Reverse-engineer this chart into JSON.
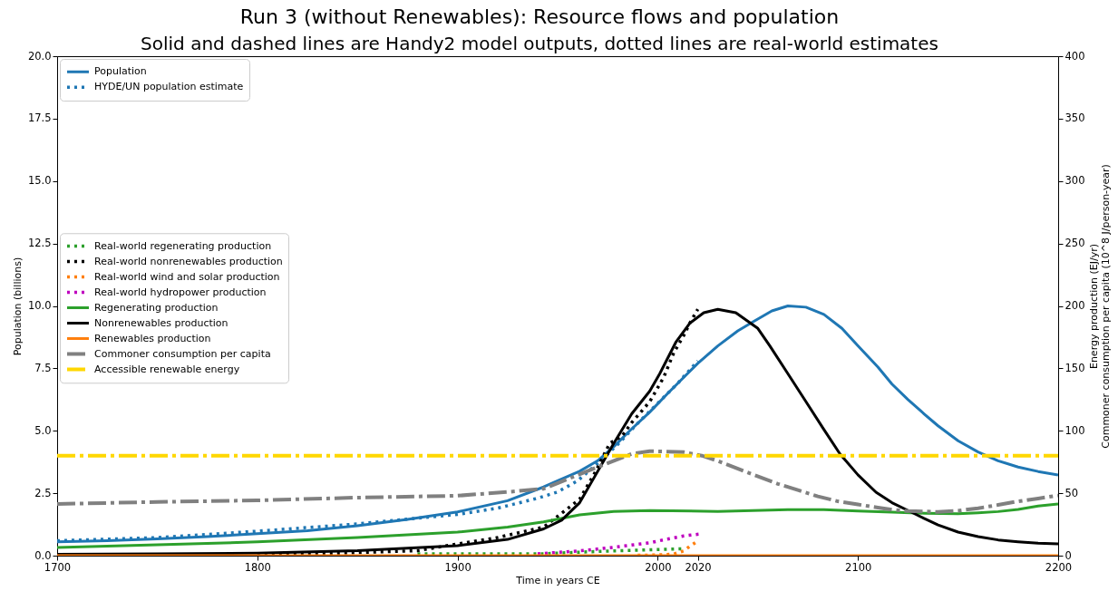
{
  "chart_data": {
    "type": "line",
    "title": "Run 3 (without Renewables): Resource flows and population",
    "subtitle": "Solid and dashed lines are Handy2 model outputs, dotted lines are real-world estimates",
    "xlabel": "Time in years CE",
    "ylabel": "Population (billions)",
    "y2label": "Energy production (EJ/yr)\nCommoner consumption per capita (10^8 J/person-year)",
    "xlim": [
      1700,
      2200
    ],
    "xticks": [
      1700,
      1800,
      1900,
      2000,
      2020,
      2100,
      2200
    ],
    "ylim": [
      0,
      20
    ],
    "yticks": [
      {
        "value": 0,
        "label": "0.0"
      },
      2.5,
      {
        "value": 5,
        "label": "5.0"
      },
      7.5,
      {
        "value": 10,
        "label": "10.0"
      },
      12.5,
      {
        "value": 15,
        "label": "15.0"
      },
      17.5,
      {
        "value": 20,
        "label": "20.0"
      }
    ],
    "y2lim": [
      0,
      400
    ],
    "y2ticks": [
      0,
      50,
      100,
      150,
      200,
      250,
      300,
      350,
      400
    ],
    "legend": "top left",
    "series": [
      {
        "name": "Population",
        "color": "#1f77b4",
        "line_style": "solid",
        "x": [
          1700,
          1725,
          1750,
          1775,
          1800,
          1825,
          1850,
          1875,
          1900,
          1925,
          1943,
          1950,
          1961,
          1970,
          1978,
          1986,
          1996,
          2005,
          2013,
          2020,
          2030,
          2040,
          2048,
          2057,
          2065,
          2074,
          2083,
          2092,
          2100,
          2110,
          2117,
          2125,
          2133,
          2140,
          2150,
          2160,
          2170,
          2180,
          2190,
          2200
        ],
        "values": [
          0.55,
          0.6,
          0.67,
          0.76,
          0.88,
          1.0,
          1.2,
          1.45,
          1.75,
          2.2,
          2.75,
          3.0,
          3.38,
          3.8,
          4.36,
          5.0,
          5.75,
          6.5,
          7.14,
          7.7,
          8.4,
          9.0,
          9.38,
          9.8,
          10.0,
          9.95,
          9.66,
          9.1,
          8.4,
          7.55,
          6.87,
          6.25,
          5.68,
          5.2,
          4.6,
          4.15,
          3.8,
          3.55,
          3.37,
          3.23
        ]
      },
      {
        "name": "HYDE/UN population estimate",
        "color": "#1f77b4",
        "line_style": "dotted",
        "x": [
          1700,
          1750,
          1800,
          1850,
          1900,
          1920,
          1940,
          1950,
          1960,
          1970,
          1980,
          1990,
          2000,
          2010,
          2020
        ],
        "values": [
          0.6,
          0.72,
          0.98,
          1.27,
          1.65,
          1.9,
          2.3,
          2.55,
          3.0,
          3.7,
          4.45,
          5.3,
          6.1,
          6.9,
          7.8
        ]
      },
      {
        "name": "Real-world regenerating production",
        "color": "#2ca02c",
        "line_style": "dotted",
        "axis": "y2",
        "x": [
          1880,
          1920,
          1943,
          1961,
          1978,
          1996,
          2013
        ],
        "values": [
          1.5,
          1.5,
          1.5,
          2.8,
          3.8,
          4.7,
          5.5
        ]
      },
      {
        "name": "Real-world nonrenewables production",
        "color": "#000000",
        "line_style": "dotted",
        "axis": "y2",
        "x": [
          1800,
          1830,
          1850,
          1880,
          1900,
          1920,
          1943,
          1952,
          1961,
          1969,
          1976,
          1982,
          1987,
          1996,
          2003,
          2008,
          2013,
          2016,
          2020
        ],
        "values": [
          1,
          1.5,
          2.5,
          4,
          9.4,
          14.5,
          22.9,
          34,
          45.2,
          67.5,
          89.9,
          95.5,
          106.6,
          123.3,
          142.9,
          162.5,
          176.4,
          186.2,
          197.3
        ]
      },
      {
        "name": "Real-world wind and solar production",
        "color": "#ff7f0e",
        "line_style": "dotted",
        "axis": "y2",
        "x": [
          1990,
          2000,
          2008,
          2013,
          2016,
          2020
        ],
        "values": [
          0.3,
          0.6,
          1.3,
          3.8,
          7.5,
          11.7
        ]
      },
      {
        "name": "Real-world hydropower production",
        "color": "#bf00bf",
        "line_style": "dotted",
        "axis": "y2",
        "x": [
          1940,
          1961,
          1978,
          1996,
          2004,
          2013,
          2021
        ],
        "values": [
          1.5,
          3.8,
          6.7,
          10.3,
          13,
          15.8,
          17.3
        ]
      },
      {
        "name": "Regenerating production",
        "color": "#2ca02c",
        "line_style": "solid",
        "axis": "y2",
        "x": [
          1700,
          1750,
          1800,
          1850,
          1900,
          1925,
          1943,
          1961,
          1978,
          1996,
          2030,
          2065,
          2083,
          2100,
          2117,
          2133,
          2150,
          2160,
          2170,
          2180,
          2190,
          2200
        ],
        "values": [
          6.5,
          8.7,
          11,
          14.5,
          18.9,
          22.8,
          27,
          32.6,
          35.4,
          36.2,
          35.4,
          36.8,
          36.8,
          35.8,
          34.8,
          34,
          33.6,
          34.3,
          35.3,
          37,
          39.7,
          41.4
        ]
      },
      {
        "name": "Nonrenewables production",
        "color": "#000000",
        "line_style": "solid",
        "axis": "y2",
        "x": [
          1700,
          1750,
          1800,
          1850,
          1900,
          1925,
          1943,
          1952,
          1961,
          1969,
          1978,
          1987,
          1996,
          2001,
          2009,
          2016,
          2023,
          2030,
          2039,
          2050,
          2056,
          2065,
          2074,
          2083,
          2091,
          2100,
          2109,
          2117,
          2126,
          2133,
          2140,
          2150,
          2160,
          2170,
          2180,
          2190,
          2200
        ],
        "values": [
          1,
          1.5,
          2,
          4,
          8,
          13,
          21.4,
          28.4,
          42.4,
          64.7,
          89.9,
          113.6,
          131.8,
          145.7,
          170.8,
          186.2,
          194.6,
          197.3,
          194.6,
          182,
          168,
          145.7,
          123.4,
          101,
          81.5,
          64.7,
          50.8,
          42.4,
          35.4,
          29.8,
          24.6,
          18.9,
          15.3,
          12.6,
          11.1,
          9.9,
          9.4
        ]
      },
      {
        "name": "Renewables production",
        "color": "#ff7f0e",
        "line_style": "solid",
        "axis": "y2",
        "x": [
          1700,
          2200
        ],
        "values": [
          0,
          0
        ]
      },
      {
        "name": "Commoner consumption per capita",
        "color": "#808080",
        "line_style": "dashed",
        "axis": "y2",
        "x": [
          1700,
          1750,
          1800,
          1850,
          1900,
          1925,
          1943,
          1969,
          1987,
          1996,
          2013,
          2022,
          2030,
          2048,
          2060,
          2070,
          2080,
          2090,
          2100,
          2110,
          2117,
          2125,
          2133,
          2140,
          2150,
          2160,
          2170,
          2180,
          2190,
          2200
        ],
        "values": [
          41.4,
          43,
          44.3,
          46.5,
          48,
          51,
          53.6,
          70.3,
          81.5,
          83.7,
          82.9,
          80.1,
          75.9,
          64.7,
          57.5,
          52.5,
          47.5,
          43.5,
          41,
          38.5,
          36.8,
          35.8,
          35.4,
          35,
          36,
          38,
          40.6,
          43.5,
          45.8,
          48.2
        ]
      },
      {
        "name": "Accessible renewable energy",
        "color": "#ffd700",
        "line_style": "dashed",
        "axis": "y2",
        "x": [
          1700,
          2200
        ],
        "values": [
          80,
          80
        ]
      }
    ]
  }
}
